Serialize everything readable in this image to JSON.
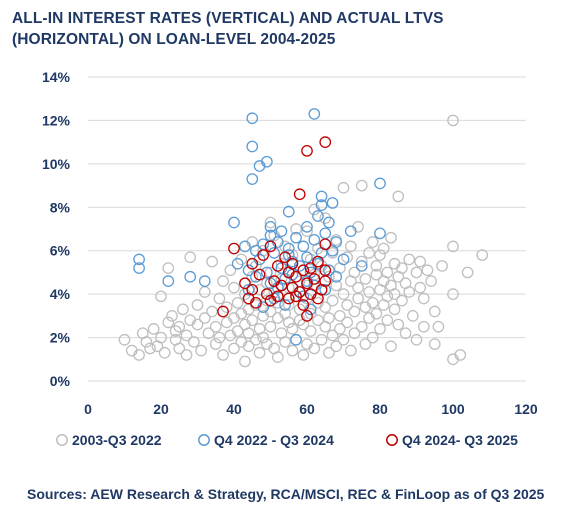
{
  "chart_data": {
    "type": "scatter",
    "title": "ALL-IN INTEREST RATES (VERTICAL) AND ACTUAL LTVS (HORIZONTAL) ON LOAN-LEVEL 2004-2025",
    "xlabel": "",
    "ylabel": "",
    "xlim": [
      0,
      120
    ],
    "ylim": [
      0,
      14
    ],
    "x_ticks": [
      "0",
      "20",
      "40",
      "60",
      "80",
      "100",
      "120"
    ],
    "y_ticks": [
      "0%",
      "2%",
      "4%",
      "6%",
      "8%",
      "10%",
      "12%",
      "14%"
    ],
    "grid": "horizontal",
    "legend_position": "bottom",
    "series": [
      {
        "name": "2003-Q3 2022",
        "color": "#bfbfbf",
        "points": [
          [
            10,
            1.9
          ],
          [
            12,
            1.4
          ],
          [
            14,
            1.2
          ],
          [
            15,
            2.2
          ],
          [
            16,
            1.8
          ],
          [
            17,
            1.5
          ],
          [
            18,
            2.4
          ],
          [
            19,
            1.6
          ],
          [
            20,
            2.0
          ],
          [
            20,
            3.9
          ],
          [
            21,
            1.3
          ],
          [
            22,
            2.7
          ],
          [
            22,
            5.2
          ],
          [
            23,
            3.0
          ],
          [
            24,
            1.9
          ],
          [
            24,
            2.3
          ],
          [
            25,
            2.5
          ],
          [
            25,
            1.5
          ],
          [
            26,
            3.3
          ],
          [
            27,
            2.1
          ],
          [
            27,
            1.2
          ],
          [
            28,
            2.8
          ],
          [
            28,
            5.7
          ],
          [
            29,
            1.8
          ],
          [
            30,
            2.6
          ],
          [
            30,
            3.5
          ],
          [
            31,
            1.4
          ],
          [
            32,
            2.9
          ],
          [
            32,
            4.1
          ],
          [
            33,
            2.2
          ],
          [
            34,
            3.2
          ],
          [
            34,
            5.5
          ],
          [
            35,
            1.7
          ],
          [
            35,
            2.5
          ],
          [
            36,
            3.8
          ],
          [
            36,
            2.0
          ],
          [
            37,
            1.2
          ],
          [
            37,
            4.6
          ],
          [
            38,
            2.7
          ],
          [
            38,
            3.4
          ],
          [
            39,
            2.1
          ],
          [
            39,
            5.1
          ],
          [
            40,
            1.5
          ],
          [
            40,
            2.9
          ],
          [
            40,
            4.3
          ],
          [
            41,
            3.6
          ],
          [
            41,
            2.3
          ],
          [
            42,
            1.8
          ],
          [
            42,
            5.6
          ],
          [
            42,
            3.1
          ],
          [
            43,
            2.6
          ],
          [
            43,
            4.0
          ],
          [
            43,
            0.9
          ],
          [
            44,
            3.3
          ],
          [
            44,
            1.6
          ],
          [
            44,
            2.2
          ],
          [
            45,
            4.8
          ],
          [
            45,
            2.8
          ],
          [
            45,
            6.4
          ],
          [
            46,
            3.5
          ],
          [
            46,
            1.9
          ],
          [
            46,
            5.3
          ],
          [
            47,
            2.4
          ],
          [
            47,
            4.2
          ],
          [
            47,
            1.3
          ],
          [
            48,
            3.0
          ],
          [
            48,
            6.0
          ],
          [
            48,
            2.0
          ],
          [
            49,
            4.5
          ],
          [
            49,
            3.7
          ],
          [
            49,
            1.7
          ],
          [
            50,
            2.5
          ],
          [
            50,
            5.0
          ],
          [
            50,
            7.3
          ],
          [
            50,
            3.2
          ],
          [
            51,
            1.5
          ],
          [
            51,
            4.1
          ],
          [
            51,
            6.7
          ],
          [
            52,
            2.9
          ],
          [
            52,
            3.6
          ],
          [
            52,
            1.1
          ],
          [
            53,
            5.4
          ],
          [
            53,
            2.2
          ],
          [
            53,
            4.7
          ],
          [
            54,
            3.1
          ],
          [
            54,
            1.8
          ],
          [
            54,
            6.2
          ],
          [
            55,
            2.7
          ],
          [
            55,
            4.3
          ],
          [
            55,
            3.5
          ],
          [
            56,
            1.4
          ],
          [
            56,
            5.8
          ],
          [
            56,
            2.4
          ],
          [
            57,
            3.9
          ],
          [
            57,
            7.0
          ],
          [
            57,
            1.9
          ],
          [
            58,
            2.8
          ],
          [
            58,
            4.6
          ],
          [
            58,
            3.3
          ],
          [
            59,
            1.2
          ],
          [
            59,
            5.1
          ],
          [
            59,
            2.6
          ],
          [
            60,
            3.8
          ],
          [
            60,
            6.9
          ],
          [
            60,
            1.7
          ],
          [
            60,
            4.4
          ],
          [
            61,
            2.3
          ],
          [
            61,
            5.6
          ],
          [
            61,
            3.1
          ],
          [
            62,
            1.5
          ],
          [
            62,
            4.9
          ],
          [
            62,
            7.9
          ],
          [
            63,
            2.8
          ],
          [
            63,
            3.6
          ],
          [
            63,
            6.1
          ],
          [
            64,
            1.9
          ],
          [
            64,
            4.2
          ],
          [
            64,
            5.3
          ],
          [
            65,
            2.5
          ],
          [
            65,
            3.4
          ],
          [
            65,
            7.5
          ],
          [
            66,
            1.3
          ],
          [
            66,
            4.8
          ],
          [
            66,
            2.9
          ],
          [
            67,
            5.9
          ],
          [
            67,
            3.7
          ],
          [
            67,
            2.1
          ],
          [
            68,
            4.4
          ],
          [
            68,
            1.6
          ],
          [
            68,
            6.5
          ],
          [
            69,
            3.0
          ],
          [
            69,
            5.2
          ],
          [
            69,
            2.4
          ],
          [
            70,
            4.0
          ],
          [
            70,
            8.9
          ],
          [
            70,
            1.9
          ],
          [
            71,
            3.5
          ],
          [
            71,
            5.7
          ],
          [
            71,
            2.7
          ],
          [
            72,
            4.6
          ],
          [
            72,
            6.2
          ],
          [
            72,
            1.4
          ],
          [
            73,
            3.2
          ],
          [
            73,
            5.0
          ],
          [
            73,
            2.2
          ],
          [
            74,
            4.3
          ],
          [
            74,
            7.1
          ],
          [
            74,
            3.8
          ],
          [
            75,
            2.5
          ],
          [
            75,
            5.5
          ],
          [
            75,
            9.0
          ],
          [
            76,
            3.4
          ],
          [
            76,
            4.7
          ],
          [
            76,
            1.7
          ],
          [
            77,
            5.9
          ],
          [
            77,
            2.9
          ],
          [
            77,
            4.1
          ],
          [
            78,
            3.6
          ],
          [
            78,
            6.4
          ],
          [
            78,
            2.0
          ],
          [
            79,
            4.9
          ],
          [
            79,
            5.3
          ],
          [
            79,
            3.1
          ],
          [
            80,
            4.2
          ],
          [
            80,
            2.4
          ],
          [
            80,
            5.8
          ],
          [
            81,
            3.5
          ],
          [
            81,
            6.1
          ],
          [
            81,
            4.6
          ],
          [
            82,
            2.8
          ],
          [
            82,
            5.0
          ],
          [
            82,
            3.9
          ],
          [
            83,
            4.4
          ],
          [
            83,
            6.6
          ],
          [
            83,
            1.6
          ],
          [
            84,
            3.3
          ],
          [
            84,
            5.4
          ],
          [
            84,
            4.0
          ],
          [
            85,
            2.6
          ],
          [
            85,
            8.5
          ],
          [
            85,
            4.8
          ],
          [
            86,
            5.2
          ],
          [
            86,
            3.7
          ],
          [
            87,
            4.5
          ],
          [
            87,
            2.2
          ],
          [
            88,
            5.6
          ],
          [
            88,
            4.1
          ],
          [
            89,
            3.0
          ],
          [
            90,
            5.0
          ],
          [
            90,
            1.9
          ],
          [
            91,
            4.3
          ],
          [
            91,
            5.5
          ],
          [
            92,
            2.5
          ],
          [
            92,
            3.8
          ],
          [
            93,
            5.1
          ],
          [
            94,
            4.6
          ],
          [
            95,
            3.2
          ],
          [
            95,
            1.7
          ],
          [
            96,
            2.5
          ],
          [
            97,
            5.3
          ],
          [
            100,
            1.0
          ],
          [
            100,
            4.0
          ],
          [
            100,
            6.2
          ],
          [
            100,
            12.0
          ],
          [
            102,
            1.2
          ],
          [
            104,
            5.0
          ],
          [
            108,
            5.8
          ]
        ]
      },
      {
        "name": "Q4 2022 - Q3 2024",
        "color": "#5b9bd5",
        "points": [
          [
            14,
            5.2
          ],
          [
            14,
            5.6
          ],
          [
            22,
            4.6
          ],
          [
            28,
            4.8
          ],
          [
            32,
            4.6
          ],
          [
            40,
            7.3
          ],
          [
            41,
            5.4
          ],
          [
            43,
            6.2
          ],
          [
            44,
            5.1
          ],
          [
            44,
            4.2
          ],
          [
            45,
            12.1
          ],
          [
            45,
            10.8
          ],
          [
            45,
            9.3
          ],
          [
            46,
            6.0
          ],
          [
            46,
            4.8
          ],
          [
            47,
            5.6
          ],
          [
            47,
            9.9
          ],
          [
            48,
            3.4
          ],
          [
            48,
            6.3
          ],
          [
            49,
            10.1
          ],
          [
            49,
            5.0
          ],
          [
            50,
            7.1
          ],
          [
            50,
            4.5
          ],
          [
            50,
            6.7
          ],
          [
            51,
            5.9
          ],
          [
            51,
            3.8
          ],
          [
            52,
            6.4
          ],
          [
            52,
            4.3
          ],
          [
            53,
            5.2
          ],
          [
            53,
            6.9
          ],
          [
            54,
            4.7
          ],
          [
            54,
            3.5
          ],
          [
            55,
            5.8
          ],
          [
            55,
            7.8
          ],
          [
            55,
            6.1
          ],
          [
            56,
            4.9
          ],
          [
            56,
            5.5
          ],
          [
            57,
            6.6
          ],
          [
            57,
            1.9
          ],
          [
            58,
            4.1
          ],
          [
            58,
            5.3
          ],
          [
            59,
            6.2
          ],
          [
            59,
            3.9
          ],
          [
            60,
            5.7
          ],
          [
            60,
            4.6
          ],
          [
            60,
            7.1
          ],
          [
            61,
            5.0
          ],
          [
            61,
            3.3
          ],
          [
            62,
            12.3
          ],
          [
            62,
            6.5
          ],
          [
            62,
            4.4
          ],
          [
            63,
            5.4
          ],
          [
            63,
            7.6
          ],
          [
            64,
            8.1
          ],
          [
            64,
            5.9
          ],
          [
            64,
            8.5
          ],
          [
            65,
            4.2
          ],
          [
            65,
            6.8
          ],
          [
            66,
            7.3
          ],
          [
            66,
            5.1
          ],
          [
            67,
            6.0
          ],
          [
            67,
            8.2
          ],
          [
            68,
            4.8
          ],
          [
            68,
            6.4
          ],
          [
            70,
            5.6
          ],
          [
            72,
            6.9
          ],
          [
            75,
            5.3
          ],
          [
            80,
            6.8
          ],
          [
            80,
            9.1
          ]
        ]
      },
      {
        "name": "Q4 2024- Q3 2025",
        "color": "#c00000",
        "points": [
          [
            37,
            3.2
          ],
          [
            40,
            6.1
          ],
          [
            43,
            4.5
          ],
          [
            44,
            3.8
          ],
          [
            45,
            4.2
          ],
          [
            45,
            5.4
          ],
          [
            46,
            3.6
          ],
          [
            47,
            4.9
          ],
          [
            48,
            5.8
          ],
          [
            49,
            4.0
          ],
          [
            50,
            6.2
          ],
          [
            50,
            3.7
          ],
          [
            51,
            4.6
          ],
          [
            52,
            5.3
          ],
          [
            52,
            3.9
          ],
          [
            53,
            4.4
          ],
          [
            54,
            5.7
          ],
          [
            55,
            3.8
          ],
          [
            55,
            5.0
          ],
          [
            56,
            4.3
          ],
          [
            56,
            5.4
          ],
          [
            57,
            3.9
          ],
          [
            57,
            4.8
          ],
          [
            58,
            8.6
          ],
          [
            58,
            4.1
          ],
          [
            59,
            5.1
          ],
          [
            59,
            3.5
          ],
          [
            60,
            10.6
          ],
          [
            60,
            4.5
          ],
          [
            60,
            3.0
          ],
          [
            61,
            5.2
          ],
          [
            61,
            4.0
          ],
          [
            62,
            4.7
          ],
          [
            63,
            5.5
          ],
          [
            63,
            3.8
          ],
          [
            64,
            4.2
          ],
          [
            65,
            11.0
          ],
          [
            65,
            6.3
          ],
          [
            65,
            4.6
          ],
          [
            65,
            5.1
          ]
        ]
      }
    ]
  },
  "footer": {
    "source": "Sources: AEW Research & Strategy, RCA/MSCI, REC & FinLoop as of Q3 2025"
  }
}
